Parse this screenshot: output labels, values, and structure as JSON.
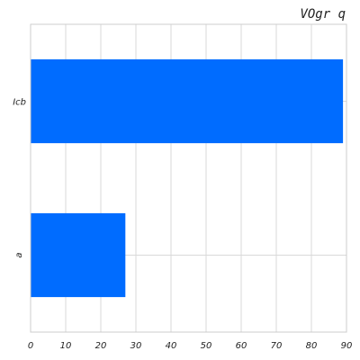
{
  "chart_data": {
    "type": "bar",
    "orientation": "horizontal",
    "title": "VOgr q",
    "categories": [
      "Icb",
      "a"
    ],
    "values": [
      89,
      27
    ],
    "xlim": [
      0,
      90
    ],
    "xticks": [
      "0",
      "10",
      "20",
      "30",
      "40",
      "50",
      "60",
      "70",
      "80",
      "90"
    ],
    "grid": true,
    "bar_color": "#006cff"
  }
}
